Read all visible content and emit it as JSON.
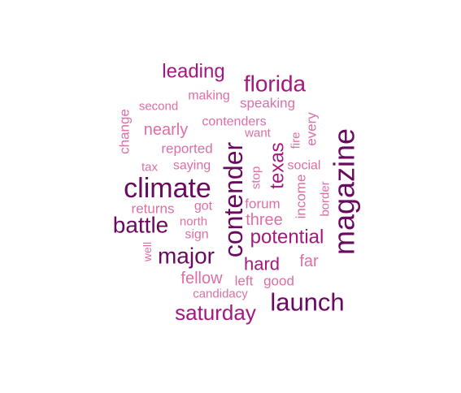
{
  "palette": {
    "dark": "#6a0a5e",
    "mid": "#a3177e",
    "light": "#dd6fa6"
  },
  "words": [
    {
      "text": "magazine",
      "color": "dark"
    },
    {
      "text": "contender",
      "color": "dark"
    },
    {
      "text": "climate",
      "color": "dark"
    },
    {
      "text": "launch",
      "color": "dark"
    },
    {
      "text": "battle",
      "color": "dark"
    },
    {
      "text": "major",
      "color": "dark"
    },
    {
      "text": "texas",
      "color": "mid"
    },
    {
      "text": "florida",
      "color": "mid"
    },
    {
      "text": "saturday",
      "color": "mid"
    },
    {
      "text": "potential",
      "color": "mid"
    },
    {
      "text": "leading",
      "color": "mid"
    },
    {
      "text": "hard",
      "color": "mid"
    },
    {
      "text": "three",
      "color": "light"
    },
    {
      "text": "nearly",
      "color": "light"
    },
    {
      "text": "fellow",
      "color": "light"
    },
    {
      "text": "far",
      "color": "light"
    },
    {
      "text": "reported",
      "color": "light"
    },
    {
      "text": "change",
      "color": "light"
    },
    {
      "text": "speaking",
      "color": "light"
    },
    {
      "text": "making",
      "color": "light"
    },
    {
      "text": "returns",
      "color": "light"
    },
    {
      "text": "saying",
      "color": "light"
    },
    {
      "text": "forum",
      "color": "light"
    },
    {
      "text": "income",
      "color": "light"
    },
    {
      "text": "contenders",
      "color": "light"
    },
    {
      "text": "every",
      "color": "light"
    },
    {
      "text": "left",
      "color": "light"
    },
    {
      "text": "good",
      "color": "light"
    },
    {
      "text": "candidacy",
      "color": "light"
    },
    {
      "text": "social",
      "color": "light"
    },
    {
      "text": "border",
      "color": "light"
    },
    {
      "text": "second",
      "color": "light"
    },
    {
      "text": "sign",
      "color": "light"
    },
    {
      "text": "north",
      "color": "light"
    },
    {
      "text": "got",
      "color": "light"
    },
    {
      "text": "stop",
      "color": "light"
    },
    {
      "text": "fire",
      "color": "light"
    },
    {
      "text": "want",
      "color": "light"
    },
    {
      "text": "tax",
      "color": "light"
    },
    {
      "text": "well",
      "color": "light"
    }
  ]
}
